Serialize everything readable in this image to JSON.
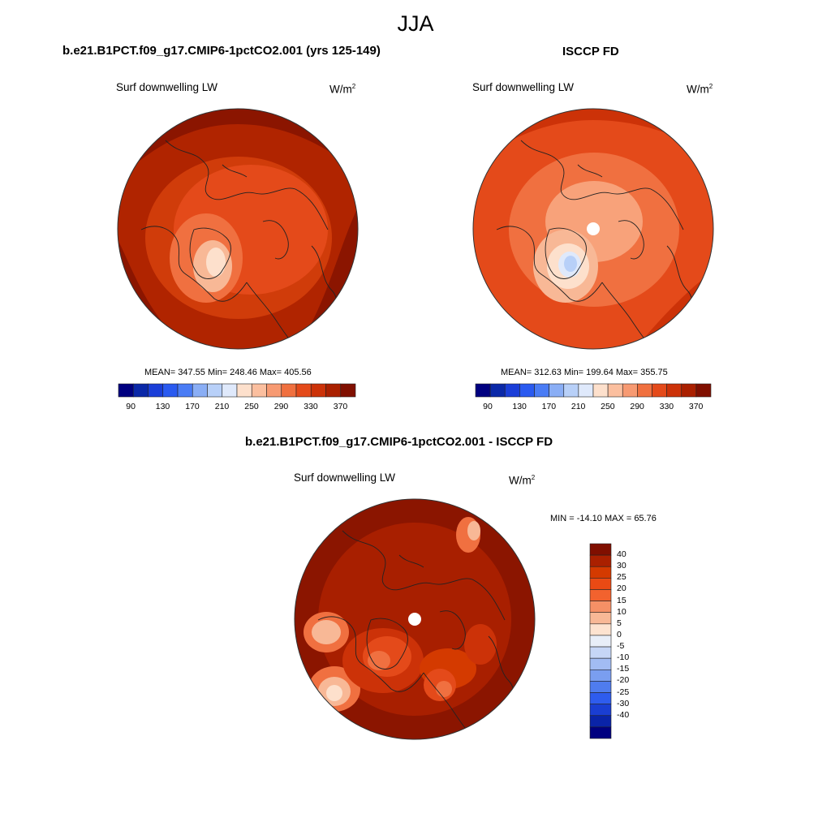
{
  "figure": {
    "title": "JJA"
  },
  "panels": [
    {
      "id": "model",
      "title": "b.e21.B1PCT.f09_g17.CMIP6-1pctCO2.001 (yrs 125-149)",
      "variable": "Surf downwelling LW",
      "units_base": "W/m",
      "units_exp": "2",
      "stats": "MEAN= 347.55  Min= 248.46  Max= 405.56"
    },
    {
      "id": "obs",
      "title": "ISCCP FD",
      "variable": "Surf downwelling LW",
      "units_base": "W/m",
      "units_exp": "2",
      "stats": "MEAN= 312.63  Min= 199.64  Max= 355.75"
    },
    {
      "id": "diff",
      "title": "b.e21.B1PCT.f09_g17.CMIP6-1pctCO2.001 - ISCCP FD",
      "variable": "Surf downwelling LW",
      "units_base": "W/m",
      "units_exp": "2",
      "stats": "MIN = -14.10 MAX =  65.76"
    }
  ],
  "colorbar_abs": {
    "colors": [
      "#000080",
      "#0a28a8",
      "#1a3ed8",
      "#2a5af0",
      "#4a7cf5",
      "#8aaef5",
      "#b8d0f8",
      "#dfe9fb",
      "#fde0cc",
      "#fbbf9f",
      "#f79a72",
      "#f0703f",
      "#e44a1a",
      "#cc3208",
      "#aa2000",
      "#800f00"
    ],
    "labels": [
      "90",
      "130",
      "170",
      "210",
      "250",
      "290",
      "330",
      "370"
    ]
  },
  "colorbar_diff": {
    "colors": [
      "#800f00",
      "#aa2000",
      "#d43a00",
      "#ea4a14",
      "#f2622e",
      "#f59066",
      "#f8b896",
      "#fde3d0",
      "#e8eef8",
      "#c6d6f6",
      "#a2bcf3",
      "#7a9ef0",
      "#4f7cee",
      "#2e5cee",
      "#1a3ed2",
      "#0a24a8",
      "#000080"
    ],
    "labels": [
      "40",
      "30",
      "25",
      "20",
      "15",
      "10",
      "5",
      "0",
      "-5",
      "-10",
      "-15",
      "-20",
      "-25",
      "-30",
      "-40"
    ]
  },
  "map_colors": {
    "ocean_hot": "#8b1500",
    "deep": "#a81f00",
    "mid": "#cc3608",
    "warm": "#e44a1a",
    "light": "#f07040",
    "pale": "#f8b896",
    "paler": "#fde0cc",
    "cold": "#dfe9fb",
    "colder": "#b8d0f8",
    "coldest": "#8aaef5",
    "coast": "#222222"
  }
}
